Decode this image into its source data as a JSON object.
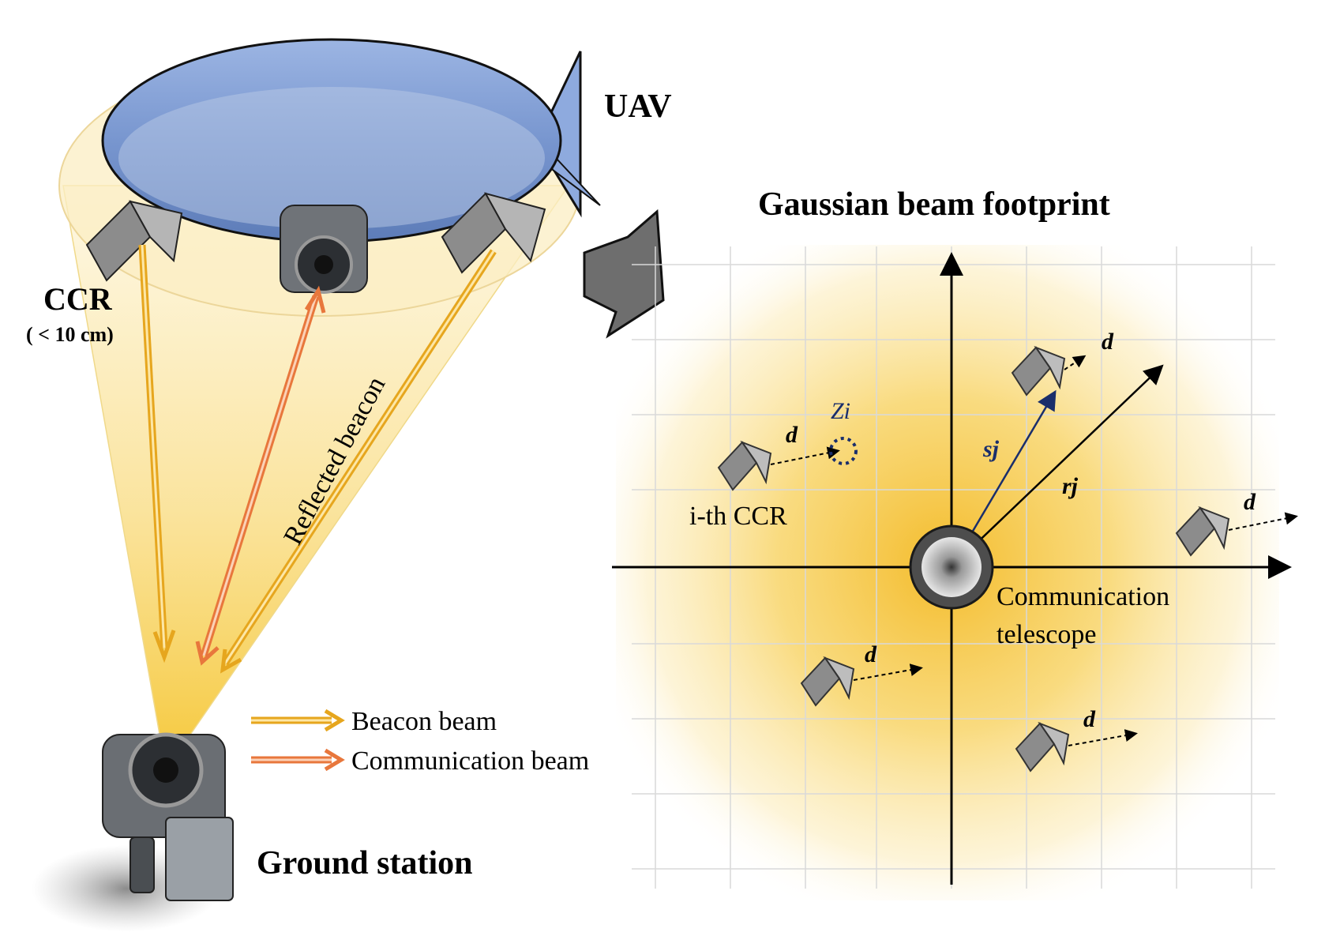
{
  "labels": {
    "uav": "UAV",
    "ccr": "CCR",
    "ccr_size": "( < 10 cm)",
    "reflected_beacon": "Reflected beacon",
    "ground_station": "Ground station",
    "footprint_title": "Gaussian beam footprint",
    "i_th_ccr": "i-th CCR",
    "z_i": "Zi",
    "s_j": "sj",
    "r_j": "rj",
    "d": "d",
    "telescope_line1": "Communication",
    "telescope_line2": "telescope"
  },
  "legend": [
    {
      "label": "Beacon beam",
      "color": "#e6a61e"
    },
    {
      "label": "Communication beam",
      "color": "#e8773c"
    }
  ],
  "colors": {
    "beacon": "#e6a61e",
    "communication": "#e8773c",
    "uav_blue": "#7f9fd3",
    "footprint_yellow": "#f5c842",
    "ccr_gray": "#8a8a8a",
    "vector_blue": "#1a2e6b"
  }
}
